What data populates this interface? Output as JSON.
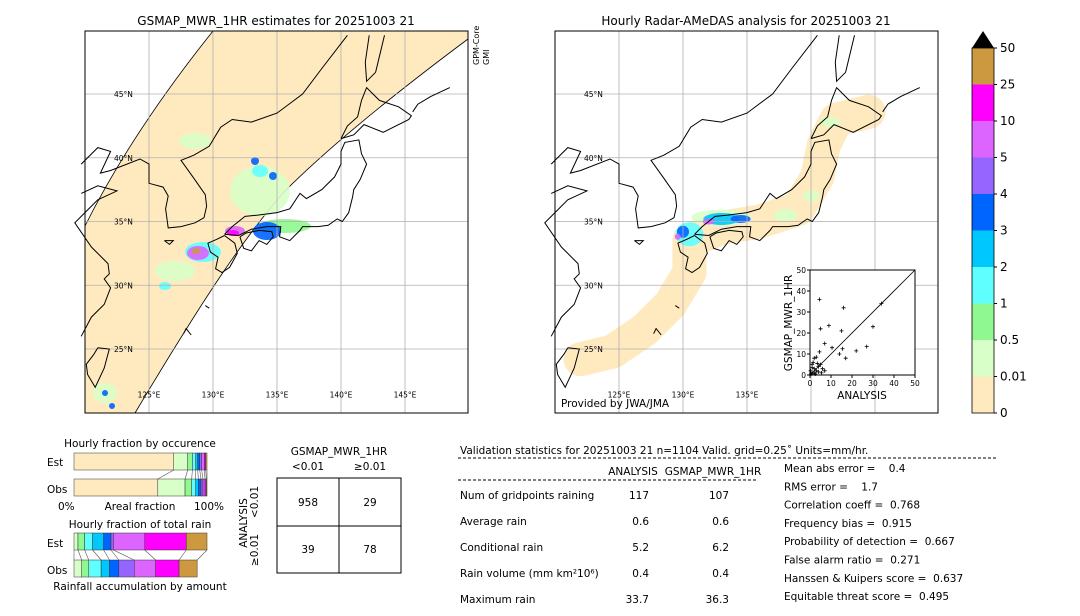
{
  "left_map": {
    "title": "GSMAP_MWR_1HR estimates for 20251003 21",
    "sensor_label_1": "GPM-Core",
    "sensor_label_2": "GMI"
  },
  "right_map": {
    "title": "Hourly Radar-AMeDAS analysis for 20251003 21",
    "credit": "Provided by JWA/JMA"
  },
  "map_axes": {
    "lat_labels": [
      "45°N",
      "40°N",
      "35°N",
      "30°N",
      "25°N"
    ],
    "lat_values": [
      45,
      40,
      35,
      30,
      25
    ],
    "lon_labels": [
      "125°E",
      "130°E",
      "135°E",
      "140°E",
      "145°E"
    ],
    "lon_values": [
      125,
      130,
      135,
      140,
      145
    ],
    "lon_range": [
      119.7,
      149.6
    ],
    "lat_range": [
      19.7,
      49.6
    ],
    "grid": true
  },
  "colorbar": {
    "labels": [
      "0",
      "0.01",
      "0.5",
      "1",
      "2",
      "3",
      "4",
      "5",
      "10",
      "25",
      "50"
    ],
    "colors": [
      "#ffeac0",
      "#d9ffc8",
      "#90f890",
      "#60ffff",
      "#00c8ff",
      "#0064ff",
      "#9664ff",
      "#dc64ff",
      "#ff00ff",
      "#cc9940"
    ],
    "extend_color": "#000000"
  },
  "chart_data": [
    {
      "type": "scatter",
      "xlabel": "ANALYSIS",
      "ylabel": "GSMAP_MWR_1HR",
      "xlim": [
        0,
        50
      ],
      "ylim": [
        0,
        50
      ],
      "ticks": [
        "0",
        "10",
        "20",
        "30",
        "40",
        "50"
      ],
      "points": [
        [
          4.5,
          36
        ],
        [
          16,
          32
        ],
        [
          5,
          22
        ],
        [
          9,
          23.5
        ],
        [
          15,
          21
        ],
        [
          30,
          23
        ],
        [
          34,
          34
        ],
        [
          7,
          15
        ],
        [
          10.5,
          13
        ],
        [
          15.5,
          12.5
        ],
        [
          22,
          11.5
        ],
        [
          27,
          13.5
        ],
        [
          14,
          10
        ],
        [
          17,
          8
        ],
        [
          4.5,
          11
        ],
        [
          2,
          8
        ],
        [
          3,
          8.5
        ],
        [
          1,
          5
        ],
        [
          2,
          3
        ],
        [
          1,
          1
        ],
        [
          3,
          2
        ],
        [
          5,
          5
        ],
        [
          6,
          3
        ],
        [
          2,
          1
        ],
        [
          0.5,
          0.5
        ],
        [
          7,
          2
        ],
        [
          4,
          4
        ],
        [
          1.5,
          6
        ],
        [
          3.5,
          5.5
        ],
        [
          0.3,
          2
        ],
        [
          2.5,
          0.5
        ],
        [
          5.5,
          1
        ],
        [
          1,
          3.5
        ],
        [
          4,
          1.5
        ]
      ]
    },
    {
      "type": "bar",
      "title": "Hourly fraction by occurence",
      "categories": [
        "Est",
        "Obs"
      ],
      "xlabel": "Areal fraction",
      "xtick_left": "0%",
      "xtick_right": "100%",
      "series_percent": {
        "Est": [
          75,
          10.5,
          3.5,
          2.5,
          1.5,
          1.5,
          1.5,
          2,
          1,
          1
        ],
        "Obs": [
          63,
          20.5,
          5,
          3,
          2,
          2,
          1.5,
          1.5,
          1,
          0.5
        ]
      }
    },
    {
      "type": "bar",
      "title": "Hourly fraction of total rain",
      "categories": [
        "Est",
        "Obs"
      ],
      "xlabel": "Rainfall accumulation by amount",
      "series_percent": {
        "Est": [
          0,
          3,
          5,
          6,
          8.3,
          5.5,
          1.8,
          23.6,
          31.2,
          15.6
        ],
        "Obs": [
          0,
          5.8,
          5.3,
          9.3,
          6.3,
          7,
          11.6,
          16.1,
          17.6,
          13.6
        ]
      }
    }
  ],
  "contingency": {
    "col_title": "GSMAP_MWR_1HR",
    "col_labels": [
      "<0.01",
      "≥0.01"
    ],
    "row_title": "ANALYSIS",
    "row_labels": [
      "<0.01",
      "≥0.01"
    ],
    "cells": [
      [
        "958",
        "29"
      ],
      [
        "39",
        "78"
      ]
    ]
  },
  "validation": {
    "header": "Validation statistics for 20251003 21  n=1104 Valid. grid=0.25˚ Units=mm/hr.",
    "col_analysis": "ANALYSIS",
    "col_gsmap": "GSMAP_MWR_1HR",
    "rows": [
      {
        "label": "Num of gridpoints raining",
        "analysis": "117",
        "gsmap": "107"
      },
      {
        "label": "Average rain",
        "analysis": "0.6",
        "gsmap": "0.6"
      },
      {
        "label": "Conditional rain",
        "analysis": "5.2",
        "gsmap": "6.2"
      },
      {
        "label": "Rain volume (mm km²10⁶)",
        "analysis": "0.4",
        "gsmap": "0.4"
      },
      {
        "label": "Maximum rain",
        "analysis": "33.7",
        "gsmap": "36.3"
      }
    ],
    "scores": [
      "Mean abs error =    0.4",
      "RMS error =    1.7",
      "Correlation coeff =  0.768",
      "Frequency bias =  0.915",
      "Probability of detection =  0.667",
      "False alarm ratio =  0.271",
      "Hanssen & Kuipers score =  0.637",
      "Equitable threat score =  0.495"
    ]
  }
}
